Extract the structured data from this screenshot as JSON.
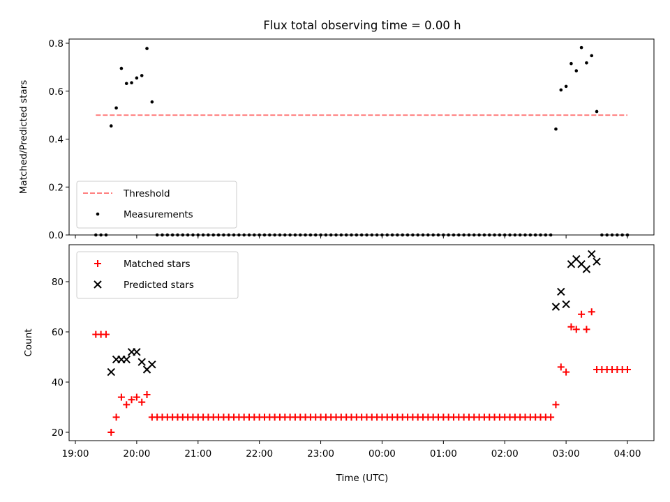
{
  "title": "Flux total observing time = 0.00 h",
  "chart_data": [
    {
      "type": "scatter",
      "ylabel": "Matched/Predicted stars",
      "xlabel": "",
      "ylim": [
        0.0,
        0.82
      ],
      "xlim": [
        "19:00",
        "04:00"
      ],
      "yticks": [
        "0.0",
        "0.2",
        "0.4",
        "0.6",
        "0.8"
      ],
      "xticks": [
        "19:00",
        "20:00",
        "21:00",
        "22:00",
        "23:00",
        "00:00",
        "01:00",
        "02:00",
        "03:00",
        "04:00"
      ],
      "legend": {
        "placement": "lower-left",
        "entries": [
          "Threshold",
          "Measurements"
        ]
      },
      "series": [
        {
          "name": "Threshold",
          "style": "dashed-line",
          "color": "#ff7f7f",
          "x": [
            "19:20",
            "04:00"
          ],
          "y": [
            0.5,
            0.5
          ]
        },
        {
          "name": "Measurements",
          "style": "dot",
          "color": "#000000",
          "x": [
            "19:20",
            "19:25",
            "19:30",
            "19:35",
            "19:40",
            "19:45",
            "19:50",
            "19:55",
            "20:00",
            "20:05",
            "20:10",
            "20:15",
            "20:20",
            "20:25",
            "20:30",
            "20:35",
            "20:40",
            "20:45",
            "20:50",
            "20:55",
            "21:00",
            "21:05",
            "21:10",
            "21:15",
            "21:20",
            "21:25",
            "21:30",
            "21:35",
            "21:40",
            "21:45",
            "21:50",
            "21:55",
            "22:00",
            "22:05",
            "22:10",
            "22:15",
            "22:20",
            "22:25",
            "22:30",
            "22:35",
            "22:40",
            "22:45",
            "22:50",
            "22:55",
            "23:00",
            "23:05",
            "23:10",
            "23:15",
            "23:20",
            "23:25",
            "23:30",
            "23:35",
            "23:40",
            "23:45",
            "23:50",
            "23:55",
            "00:00",
            "00:05",
            "00:10",
            "00:15",
            "00:20",
            "00:25",
            "00:30",
            "00:35",
            "00:40",
            "00:45",
            "00:50",
            "00:55",
            "01:00",
            "01:05",
            "01:10",
            "01:15",
            "01:20",
            "01:25",
            "01:30",
            "01:35",
            "01:40",
            "01:45",
            "01:50",
            "01:55",
            "02:00",
            "02:05",
            "02:10",
            "02:15",
            "02:20",
            "02:25",
            "02:30",
            "02:35",
            "02:40",
            "02:45",
            "02:50",
            "02:55",
            "03:00",
            "03:05",
            "03:10",
            "03:15",
            "03:20",
            "03:25",
            "03:30",
            "03:35",
            "03:40",
            "03:45",
            "03:50",
            "03:55",
            "04:00"
          ],
          "y": [
            0,
            0,
            0,
            0.455,
            0.53,
            0.695,
            0.632,
            0.635,
            0.655,
            0.665,
            0.778,
            0.555,
            0,
            0,
            0,
            0,
            0,
            0,
            0,
            0,
            0,
            0,
            0,
            0,
            0,
            0,
            0,
            0,
            0,
            0,
            0,
            0,
            0,
            0,
            0,
            0,
            0,
            0,
            0,
            0,
            0,
            0,
            0,
            0,
            0,
            0,
            0,
            0,
            0,
            0,
            0,
            0,
            0,
            0,
            0,
            0,
            0,
            0,
            0,
            0,
            0,
            0,
            0,
            0,
            0,
            0,
            0,
            0,
            0,
            0,
            0,
            0,
            0,
            0,
            0,
            0,
            0,
            0,
            0,
            0,
            0,
            0,
            0,
            0,
            0,
            0,
            0,
            0,
            0,
            0,
            0.442,
            0.605,
            0.62,
            0.715,
            0.685,
            0.782,
            0.718,
            0.748,
            0.515,
            0,
            0,
            0,
            0,
            0,
            0
          ]
        }
      ]
    },
    {
      "type": "scatter",
      "ylabel": "Count",
      "xlabel": "Time (UTC)",
      "ylim": [
        16,
        96
      ],
      "xlim": [
        "19:00",
        "04:00"
      ],
      "yticks": [
        "20",
        "40",
        "60",
        "80"
      ],
      "xticks": [
        "19:00",
        "20:00",
        "21:00",
        "22:00",
        "23:00",
        "00:00",
        "01:00",
        "02:00",
        "03:00",
        "04:00"
      ],
      "legend": {
        "placement": "upper-left",
        "entries": [
          "Matched stars",
          "Predicted stars"
        ]
      },
      "series": [
        {
          "name": "Matched stars",
          "style": "plus",
          "color": "#ff0000",
          "x": [
            "19:20",
            "19:25",
            "19:30",
            "19:35",
            "19:40",
            "19:45",
            "19:50",
            "19:55",
            "20:00",
            "20:05",
            "20:10",
            "20:15",
            "20:20",
            "20:25",
            "20:30",
            "20:35",
            "20:40",
            "20:45",
            "20:50",
            "20:55",
            "21:00",
            "21:05",
            "21:10",
            "21:15",
            "21:20",
            "21:25",
            "21:30",
            "21:35",
            "21:40",
            "21:45",
            "21:50",
            "21:55",
            "22:00",
            "22:05",
            "22:10",
            "22:15",
            "22:20",
            "22:25",
            "22:30",
            "22:35",
            "22:40",
            "22:45",
            "22:50",
            "22:55",
            "23:00",
            "23:05",
            "23:10",
            "23:15",
            "23:20",
            "23:25",
            "23:30",
            "23:35",
            "23:40",
            "23:45",
            "23:50",
            "23:55",
            "00:00",
            "00:05",
            "00:10",
            "00:15",
            "00:20",
            "00:25",
            "00:30",
            "00:35",
            "00:40",
            "00:45",
            "00:50",
            "00:55",
            "01:00",
            "01:05",
            "01:10",
            "01:15",
            "01:20",
            "01:25",
            "01:30",
            "01:35",
            "01:40",
            "01:45",
            "01:50",
            "01:55",
            "02:00",
            "02:05",
            "02:10",
            "02:15",
            "02:20",
            "02:25",
            "02:30",
            "02:35",
            "02:40",
            "02:45",
            "02:50",
            "02:55",
            "03:00",
            "03:05",
            "03:10",
            "03:15",
            "03:20",
            "03:25",
            "03:30",
            "03:35",
            "03:40",
            "03:45",
            "03:50",
            "03:55",
            "04:00"
          ],
          "y": [
            59,
            59,
            59,
            20,
            26,
            34,
            31,
            33,
            34,
            32,
            35,
            26,
            26,
            26,
            26,
            26,
            26,
            26,
            26,
            26,
            26,
            26,
            26,
            26,
            26,
            26,
            26,
            26,
            26,
            26,
            26,
            26,
            26,
            26,
            26,
            26,
            26,
            26,
            26,
            26,
            26,
            26,
            26,
            26,
            26,
            26,
            26,
            26,
            26,
            26,
            26,
            26,
            26,
            26,
            26,
            26,
            26,
            26,
            26,
            26,
            26,
            26,
            26,
            26,
            26,
            26,
            26,
            26,
            26,
            26,
            26,
            26,
            26,
            26,
            26,
            26,
            26,
            26,
            26,
            26,
            26,
            26,
            26,
            26,
            26,
            26,
            26,
            26,
            26,
            26,
            31,
            46,
            44,
            62,
            61,
            67,
            61,
            68,
            45,
            45,
            45,
            45,
            45,
            45,
            45
          ]
        },
        {
          "name": "Predicted stars",
          "style": "x",
          "color": "#000000",
          "x": [
            "19:35",
            "19:40",
            "19:45",
            "19:50",
            "19:55",
            "20:00",
            "20:05",
            "20:10",
            "20:15",
            "02:50",
            "02:55",
            "03:00",
            "03:05",
            "03:10",
            "03:15",
            "03:20",
            "03:25",
            "03:30"
          ],
          "y": [
            44,
            49,
            49,
            49,
            52,
            52,
            48,
            45,
            47,
            70,
            76,
            71,
            87,
            89,
            87,
            85,
            91,
            88
          ]
        }
      ]
    }
  ]
}
